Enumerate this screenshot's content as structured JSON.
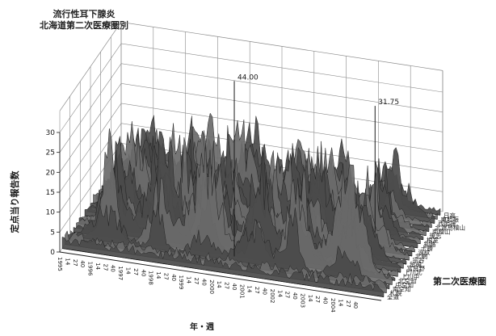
{
  "chart_data": {
    "type": "area",
    "title": [
      "流行性耳下腺炎",
      "北海道第二次医療圏別"
    ],
    "xlabel": "年・週",
    "ylabel": "定点当り報告数",
    "zlabel": "第二次医療圏",
    "ylim": [
      0,
      30
    ],
    "y_ticks": [
      "0",
      "5",
      "10",
      "15",
      "20",
      "25",
      "30"
    ],
    "x_tick_labels": [
      "1995",
      "14",
      "27",
      "40",
      "1996",
      "14",
      "27",
      "40",
      "1997",
      "14",
      "27",
      "40",
      "1998",
      "14",
      "27",
      "40",
      "1999",
      "14",
      "27",
      "40",
      "2000",
      "14",
      "27",
      "40",
      "2001",
      "14",
      "27",
      "40",
      "2002",
      "14",
      "27",
      "40",
      "2003",
      "14",
      "27",
      "40",
      "2004",
      "14",
      "27",
      "40"
    ],
    "z_categories": [
      "全道",
      "札幌",
      "南空知",
      "中空知",
      "北空知",
      "上川中",
      "上川北",
      "富良野",
      "留萌",
      "宗谷",
      "北網",
      "遠紋",
      "十勝",
      "釧路",
      "根室",
      "後志",
      "南檜山",
      "北渡島檜山",
      "西胆振",
      "東胆振",
      "日高"
    ],
    "annotations": [
      {
        "text": "44.00",
        "x": "2000",
        "z": "北空知",
        "y": 44.0
      },
      {
        "text": "31.75",
        "x": "2003",
        "z": "根室",
        "y": 31.75
      }
    ],
    "grid": true,
    "colors": {
      "foreground": "#1a1a1a",
      "fill": "#555555",
      "grid": "#8a8a8a"
    }
  }
}
